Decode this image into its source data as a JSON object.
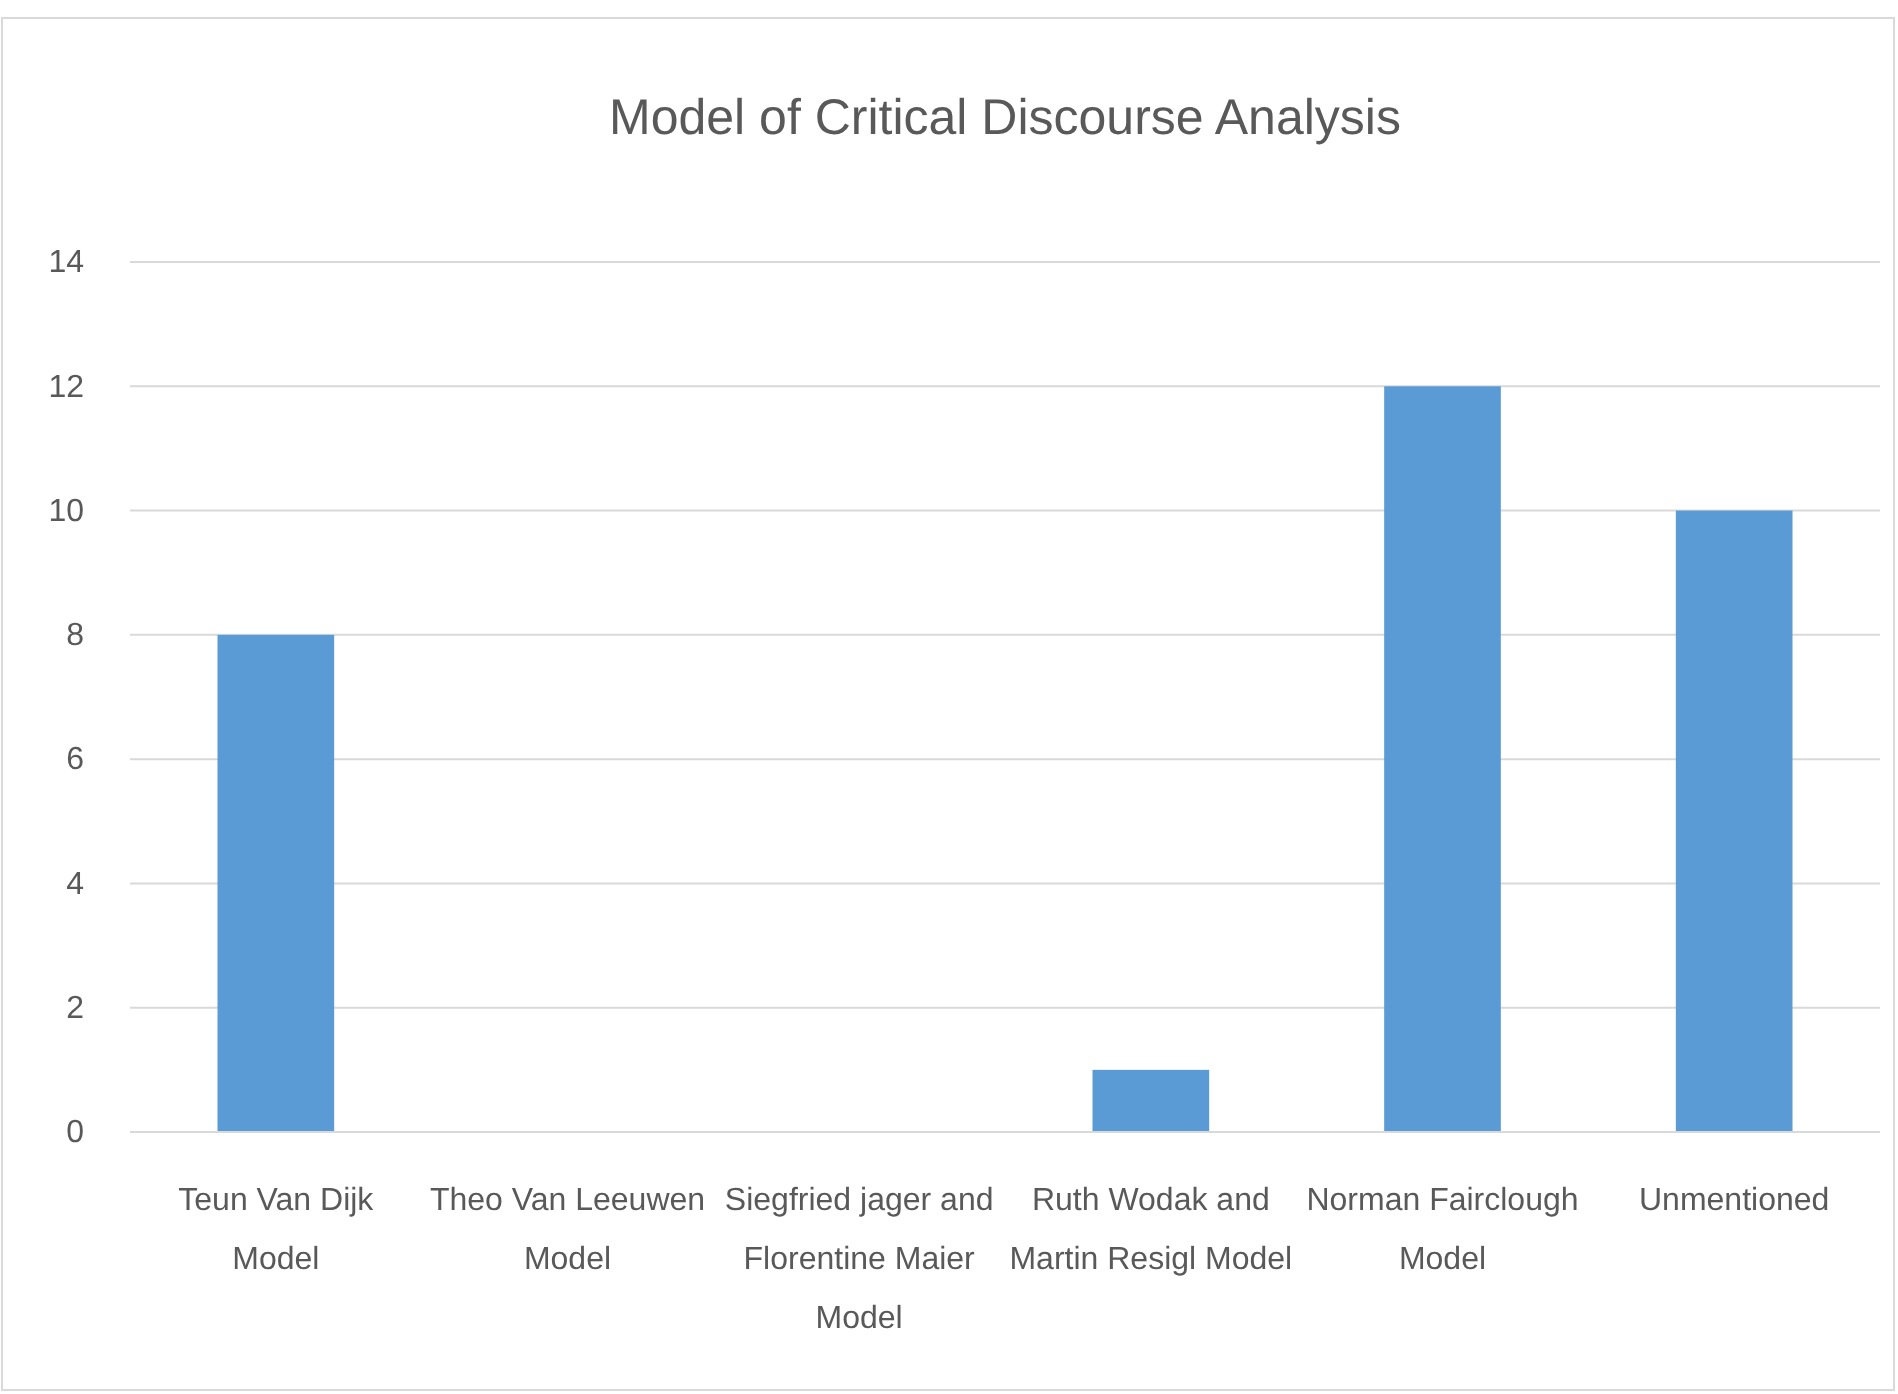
{
  "chart_data": {
    "type": "bar",
    "title": "Model of Critical Discourse Analysis",
    "categories": [
      "Teun Van Dijk Model",
      "Theo Van Leeuwen Model",
      "Siegfried jager and Florentine Maier Model",
      "Ruth Wodak and Martin Resigl Model",
      "Norman Fairclough Model",
      "Unmentioned"
    ],
    "values": [
      8,
      0,
      0,
      1,
      12,
      10
    ],
    "color": "#5b9bd5",
    "ylim": [
      0,
      14
    ],
    "yticks": [
      0,
      2,
      4,
      6,
      8,
      10,
      12,
      14
    ],
    "grid": "y"
  }
}
